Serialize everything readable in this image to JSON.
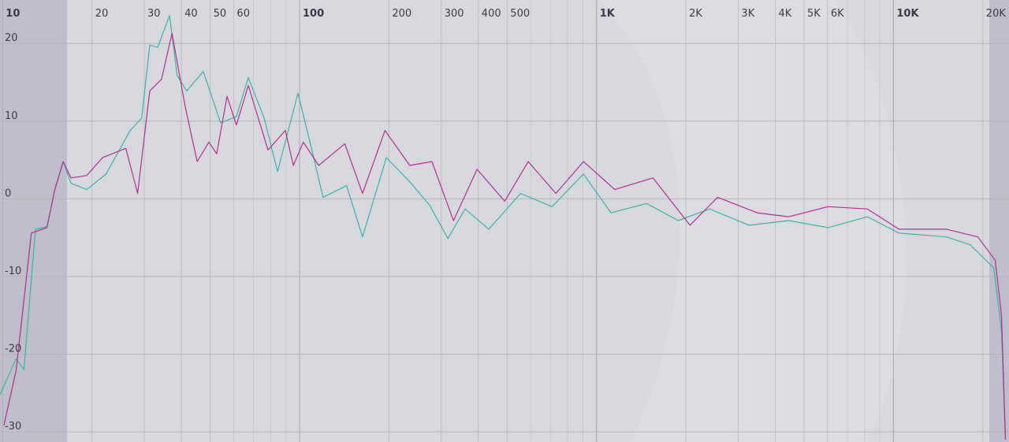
{
  "chart_data": {
    "type": "line",
    "xscale": "log",
    "grid": true,
    "xlim": [
      9.8,
      24500
    ],
    "ylim": [
      -31.3,
      25.6
    ],
    "xticks": [
      10,
      20,
      30,
      40,
      50,
      60,
      100,
      200,
      300,
      400,
      500,
      {
        "value": 1000,
        "label": "1K"
      },
      {
        "value": 2000,
        "label": "2K"
      },
      {
        "value": 3000,
        "label": "3K"
      },
      {
        "value": 4000,
        "label": "4K"
      },
      {
        "value": 5000,
        "label": "5K"
      },
      {
        "value": 6000,
        "label": "6K"
      },
      {
        "value": 10000,
        "label": "10K"
      },
      {
        "value": 20000,
        "label": "20K"
      }
    ],
    "yticks": [
      -30,
      -20,
      -10,
      0,
      10,
      20
    ],
    "series": [
      {
        "color": "#3fb39a",
        "x": [
          9.8,
          11.1,
          11.8,
          12.9,
          14.1,
          15.0,
          16.0,
          17.0,
          19.2,
          22.3,
          26.9,
          29.4,
          31.3,
          33.3,
          36.5,
          38.7,
          41.7,
          47.4,
          54.2,
          61.3,
          67.2,
          76.0,
          84.3,
          98.8,
          110,
          120,
          144,
          163,
          196,
          235,
          274,
          316,
          361,
          434,
          555,
          708,
          904,
          1119,
          1475,
          1884,
          2405,
          3266,
          4436,
          6026,
          8167,
          10440,
          15070,
          18110,
          21770,
          23120,
          23830
        ],
        "values": [
          -25.2,
          -20.6,
          -22,
          -3.9,
          -3.6,
          1.2,
          4.8,
          2,
          1.2,
          3.2,
          8.8,
          10.4,
          19.8,
          19.5,
          23.6,
          15.9,
          13.9,
          16.4,
          9.8,
          10.6,
          15.6,
          10.4,
          3.5,
          13.6,
          6.3,
          0.2,
          1.7,
          -4.9,
          5.3,
          2.2,
          -0.8,
          -5.1,
          -1.3,
          -3.9,
          0.7,
          -1,
          3.2,
          -1.8,
          -0.6,
          -2.8,
          -1.3,
          -3.4,
          -2.8,
          -3.7,
          -2.3,
          -4.4,
          -4.9,
          -5.9,
          -8.9,
          -17,
          -31
        ]
      },
      {
        "color": "#b0308e",
        "x": [
          10.1,
          11.1,
          12.5,
          14.1,
          15.0,
          16.0,
          17.0,
          19.2,
          21.7,
          26.0,
          28.5,
          31.3,
          34.3,
          37.2,
          41.2,
          45.2,
          49.5,
          52.6,
          57.0,
          61.3,
          67.2,
          78.3,
          89.6,
          95.3,
          103,
          116,
          142,
          163,
          194,
          235,
          279,
          330,
          396,
          491,
          589,
          730,
          904,
          1153,
          1549,
          2065,
          2559,
          3475,
          4436,
          6026,
          8167,
          10440,
          15070,
          19240,
          22020,
          23120,
          23830
        ],
        "values": [
          -29.2,
          -22.1,
          -4.4,
          -3.7,
          1.2,
          4.8,
          2.7,
          3,
          5.3,
          6.5,
          0.7,
          13.9,
          15.4,
          21.3,
          11.9,
          4.8,
          7.3,
          5.8,
          13.2,
          9.5,
          14.6,
          6.3,
          8.8,
          4.3,
          7.3,
          4.3,
          7.1,
          0.7,
          8.8,
          4.3,
          4.8,
          -2.8,
          3.8,
          -0.3,
          4.8,
          0.7,
          4.8,
          1.2,
          2.7,
          -3.4,
          0.2,
          -1.8,
          -2.3,
          -1,
          -1.3,
          -3.9,
          -3.9,
          -4.9,
          -7.9,
          -15,
          -31
        ]
      }
    ]
  }
}
